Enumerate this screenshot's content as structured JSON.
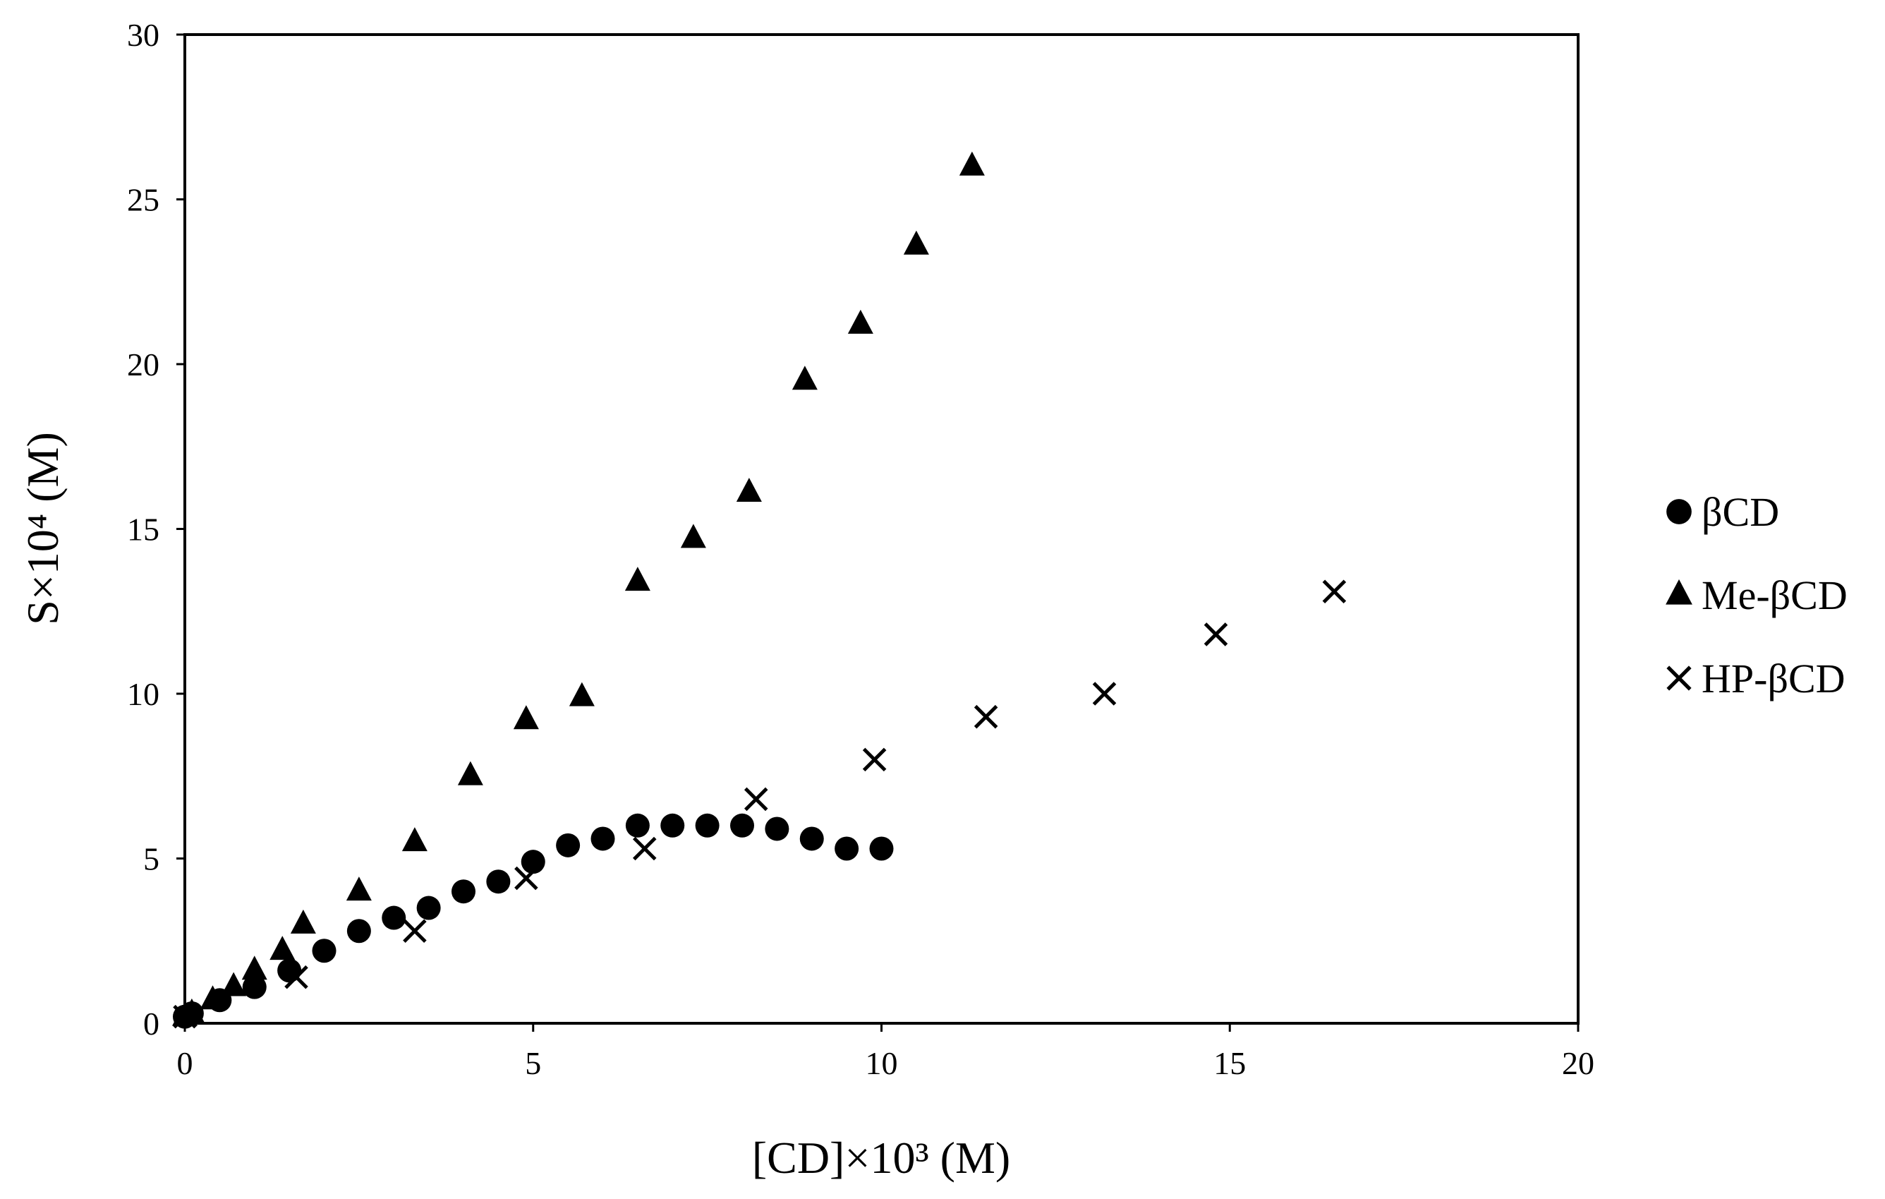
{
  "chart_data": {
    "type": "scatter",
    "title": "",
    "xlabel": "[CD]×10³ (M)",
    "ylabel": "S×10⁴ (M)",
    "xlim": [
      0,
      20
    ],
    "ylim": [
      0,
      30
    ],
    "xticks": [
      0,
      5,
      10,
      15,
      20
    ],
    "yticks": [
      0,
      5,
      10,
      15,
      20,
      25,
      30
    ],
    "grid": false,
    "legend_position": "right",
    "series": [
      {
        "name": "βCD",
        "marker": "circle",
        "color": "#000000",
        "x": [
          0,
          0.1,
          0.5,
          1.0,
          1.5,
          2.0,
          2.5,
          3.0,
          3.5,
          4.0,
          4.5,
          5.0,
          5.5,
          6.0,
          6.5,
          7.0,
          7.5,
          8.0,
          8.5,
          9.0,
          9.5,
          10.0
        ],
        "y": [
          0.2,
          0.3,
          0.7,
          1.1,
          1.6,
          2.2,
          2.8,
          3.2,
          3.5,
          4.0,
          4.3,
          4.9,
          5.4,
          5.6,
          6.0,
          6.0,
          6.0,
          6.0,
          5.9,
          5.6,
          5.3,
          5.3
        ]
      },
      {
        "name": "Me-βCD",
        "marker": "triangle",
        "color": "#000000",
        "x": [
          0,
          0.1,
          0.4,
          0.7,
          1.0,
          1.4,
          1.7,
          2.5,
          3.3,
          4.1,
          4.9,
          5.7,
          6.5,
          7.3,
          8.1,
          8.9,
          9.7,
          10.5,
          11.3
        ],
        "y": [
          0.2,
          0.3,
          0.7,
          1.1,
          1.6,
          2.2,
          3.0,
          4.0,
          5.5,
          7.5,
          9.2,
          9.9,
          13.4,
          14.7,
          16.1,
          19.5,
          21.2,
          23.6,
          26.0
        ]
      },
      {
        "name": "HP-βCD",
        "marker": "x",
        "color": "#000000",
        "x": [
          0,
          1.6,
          3.3,
          4.9,
          6.6,
          8.2,
          9.9,
          11.5,
          13.2,
          14.8,
          16.5
        ],
        "y": [
          0.2,
          1.4,
          2.8,
          4.4,
          5.3,
          6.8,
          8.0,
          9.3,
          10.0,
          11.8,
          13.1
        ]
      }
    ]
  }
}
